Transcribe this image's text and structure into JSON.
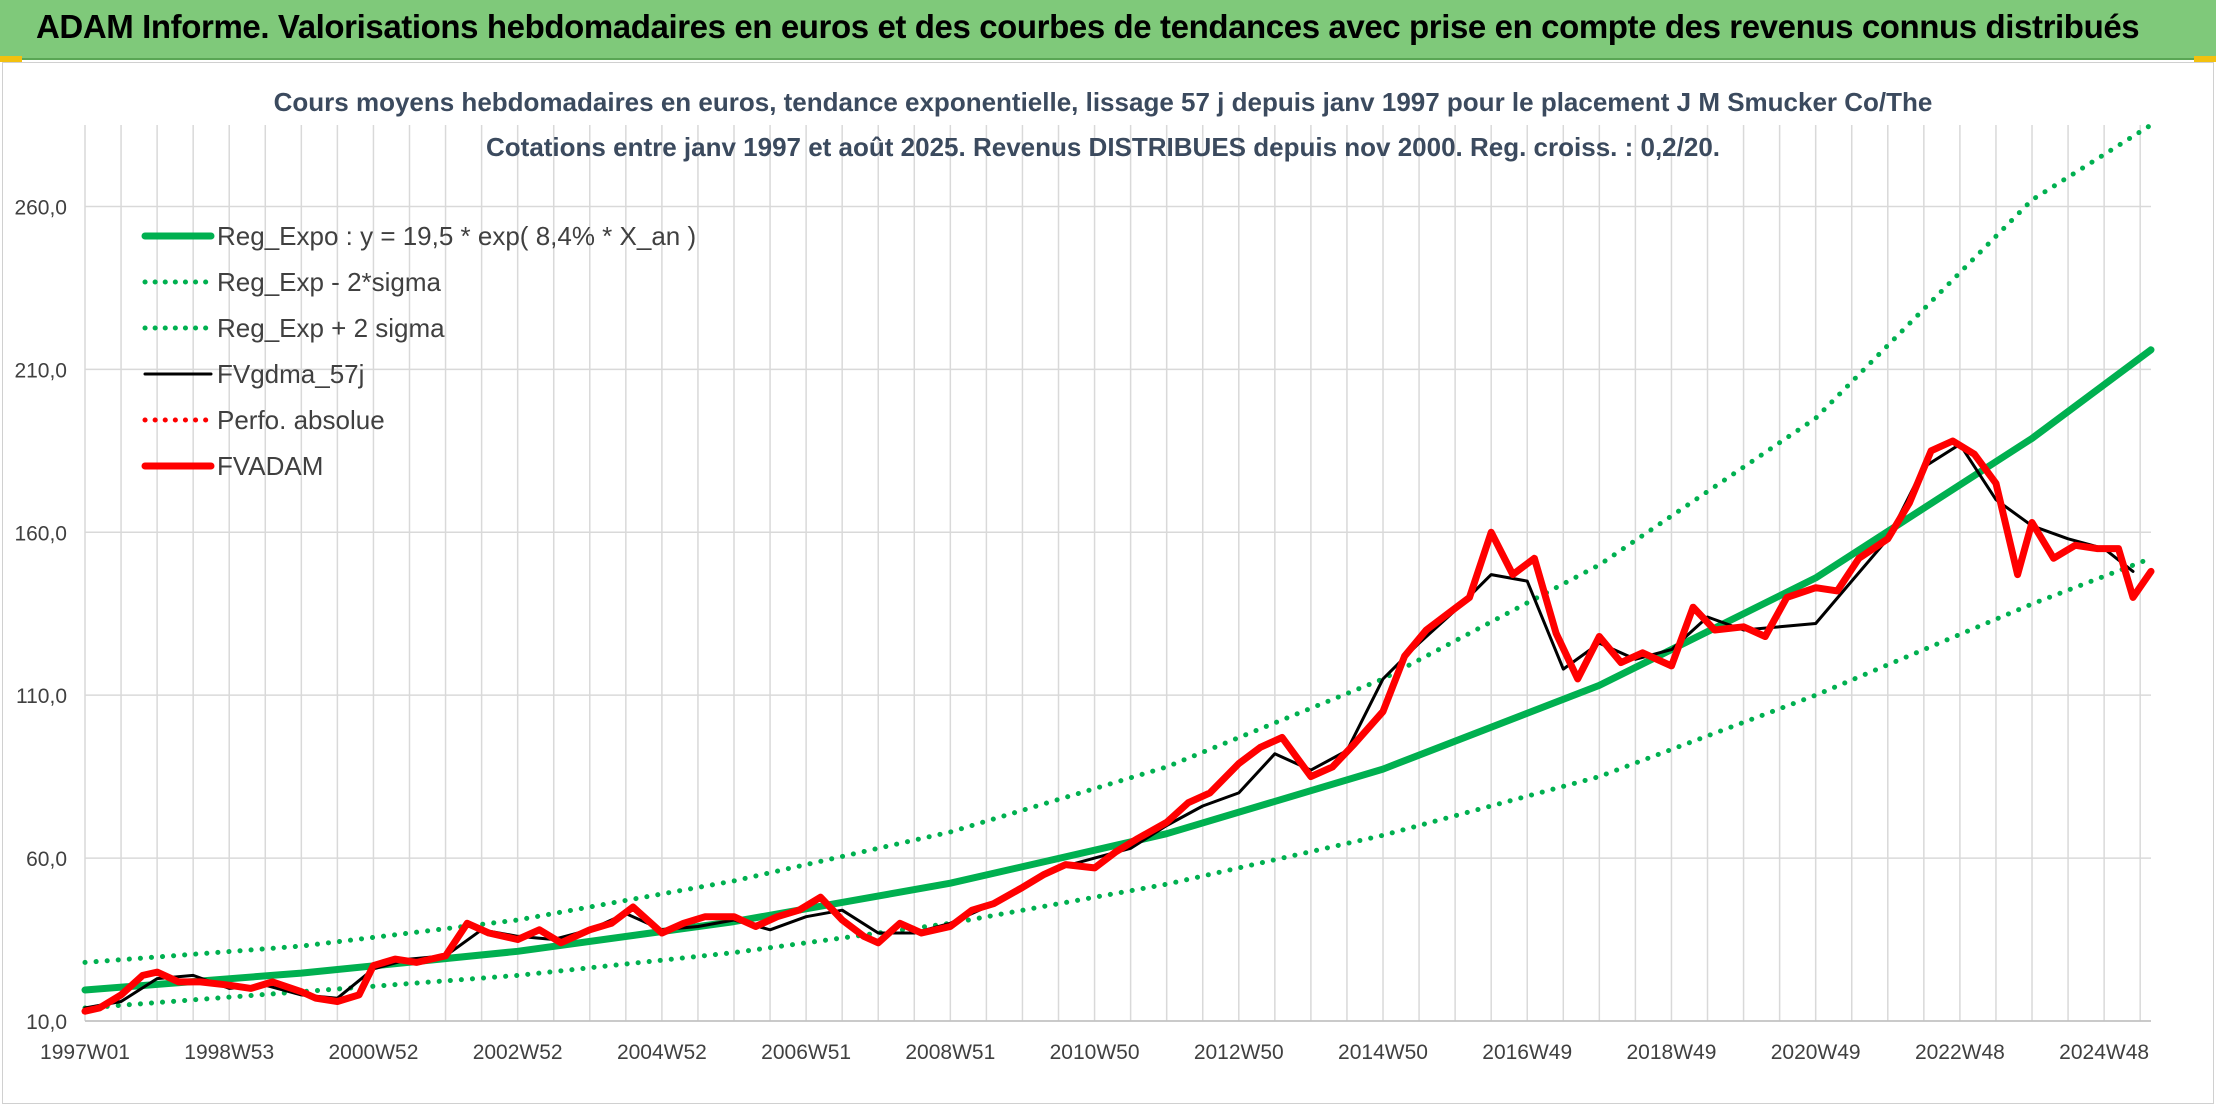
{
  "header": {
    "title": "ADAM Informe. Valorisations hebdomadaires en euros et des courbes de tendances avec prise en compte des revenus connus distribués"
  },
  "chart_data": {
    "type": "line",
    "title_line1": "Cours moyens hebdomadaires en euros, tendance exponentielle, lissage 57 j depuis janv 1997 pour le placement J M Smucker Co/The",
    "title_line2": "Cotations entre janv 1997 et août 2025. Revenus DISTRIBUES depuis nov 2000. Reg. croiss. : 0,2/20.",
    "xlabel": "",
    "ylabel": "",
    "ylim": [
      10,
      285
    ],
    "xlim": [
      1997.0,
      2025.65
    ],
    "grid": true,
    "y_ticks": [
      "10,0",
      "60,0",
      "110,0",
      "160,0",
      "210,0",
      "260,0"
    ],
    "y_tick_values": [
      10,
      60,
      110,
      160,
      210,
      260
    ],
    "x_ticks": [
      "1997W01",
      "1998W53",
      "2000W52",
      "2002W52",
      "2004W52",
      "2006W51",
      "2008W51",
      "2010W50",
      "2012W50",
      "2014W50",
      "2016W49",
      "2018W49",
      "2020W49",
      "2022W48",
      "2024W48"
    ],
    "x_tick_values": [
      1997.0,
      1999.0,
      2001.0,
      2003.0,
      2005.0,
      2007.0,
      2009.0,
      2011.0,
      2013.0,
      2015.0,
      2017.0,
      2019.0,
      2021.0,
      2023.0,
      2025.0
    ],
    "legend_position": "top-left",
    "colors": {
      "green": "#00b050",
      "black": "#000000",
      "red": "#ff0000",
      "grid": "#d9d9d9"
    },
    "series": [
      {
        "name": "Reg_Expo : y = 19,5 * exp( 8,4% *  X_an )",
        "style": "solid-thick",
        "color": "#00b050",
        "x": [
          1997.0,
          2000.0,
          2003.0,
          2006.0,
          2009.0,
          2012.0,
          2015.0,
          2018.0,
          2021.0,
          2024.0,
          2025.65
        ],
        "y": [
          19.5,
          24.7,
          31.4,
          40.5,
          52.3,
          67.5,
          87.3,
          113.0,
          146.0,
          188.8,
          216.0
        ]
      },
      {
        "name": "Reg_Exp - 2*sigma",
        "style": "dotted",
        "color": "#00b050",
        "x": [
          1997.0,
          2000.0,
          2003.0,
          2006.0,
          2009.0,
          2012.0,
          2015.0,
          2018.0,
          2021.0,
          2024.0,
          2025.65
        ],
        "y": [
          14.0,
          19.0,
          24.0,
          31.0,
          40.0,
          52.0,
          67.0,
          85.0,
          110.0,
          138.0,
          152.0
        ]
      },
      {
        "name": "Reg_Exp + 2 sigma",
        "style": "dotted",
        "color": "#00b050",
        "x": [
          1997.0,
          2000.0,
          2003.0,
          2006.0,
          2009.0,
          2012.0,
          2015.0,
          2018.0,
          2021.0,
          2024.0,
          2025.65
        ],
        "y": [
          28.0,
          33.0,
          41.0,
          53.0,
          68.0,
          88.0,
          115.0,
          150.0,
          195.0,
          262.0,
          296.0
        ]
      },
      {
        "name": "FVgdma_57j",
        "style": "solid",
        "color": "#000000",
        "x": [
          1997.0,
          1997.5,
          1998.0,
          1998.5,
          1999.0,
          1999.5,
          2000.0,
          2000.5,
          2001.0,
          2001.5,
          2002.0,
          2002.5,
          2003.0,
          2003.5,
          2004.0,
          2004.5,
          2005.0,
          2005.5,
          2006.0,
          2006.5,
          2007.0,
          2007.5,
          2008.0,
          2008.5,
          2009.0,
          2009.5,
          2010.0,
          2010.5,
          2011.0,
          2011.5,
          2012.0,
          2012.5,
          2013.0,
          2013.5,
          2014.0,
          2014.5,
          2015.0,
          2015.5,
          2016.0,
          2016.5,
          2017.0,
          2017.5,
          2018.0,
          2018.5,
          2019.0,
          2019.5,
          2020.0,
          2020.5,
          2021.0,
          2021.5,
          2022.0,
          2022.5,
          2023.0,
          2023.5,
          2024.0,
          2024.5,
          2025.0,
          2025.4
        ],
        "y": [
          14,
          16,
          23,
          24,
          20,
          21,
          18,
          17,
          26,
          29,
          30,
          38,
          36,
          35,
          38,
          43,
          38,
          39,
          41,
          38,
          42,
          44,
          37,
          37,
          40,
          45,
          51,
          57,
          60,
          63,
          70,
          76,
          80,
          92,
          87,
          93,
          115,
          126,
          136,
          147,
          145,
          118,
          126,
          121,
          124,
          134,
          130,
          131,
          132,
          145,
          158,
          180,
          187,
          170,
          162,
          158,
          155,
          148
        ]
      },
      {
        "name": "Perfo. absolue",
        "style": "dotted",
        "color": "#ff0000",
        "x": [],
        "y": []
      },
      {
        "name": "FVADAM",
        "style": "solid-thick",
        "color": "#ff0000",
        "x": [
          1997.0,
          1997.2,
          1997.5,
          1997.8,
          1998.0,
          1998.3,
          1998.6,
          1999.0,
          1999.3,
          1999.6,
          2000.0,
          2000.2,
          2000.5,
          2000.8,
          2001.0,
          2001.3,
          2001.6,
          2002.0,
          2002.3,
          2002.6,
          2003.0,
          2003.3,
          2003.6,
          2004.0,
          2004.3,
          2004.6,
          2005.0,
          2005.3,
          2005.6,
          2006.0,
          2006.3,
          2006.6,
          2006.9,
          2007.2,
          2007.5,
          2007.8,
          2008.0,
          2008.3,
          2008.6,
          2009.0,
          2009.3,
          2009.6,
          2010.0,
          2010.3,
          2010.6,
          2011.0,
          2011.3,
          2011.6,
          2012.0,
          2012.3,
          2012.6,
          2013.0,
          2013.3,
          2013.6,
          2014.0,
          2014.3,
          2014.6,
          2015.0,
          2015.3,
          2015.6,
          2015.9,
          2016.2,
          2016.5,
          2016.8,
          2017.1,
          2017.4,
          2017.7,
          2018.0,
          2018.3,
          2018.6,
          2019.0,
          2019.3,
          2019.6,
          2020.0,
          2020.3,
          2020.6,
          2021.0,
          2021.3,
          2021.6,
          2022.0,
          2022.3,
          2022.6,
          2022.9,
          2023.2,
          2023.5,
          2023.8,
          2024.0,
          2024.3,
          2024.6,
          2024.9,
          2025.2,
          2025.4,
          2025.65
        ],
        "y": [
          13,
          14,
          18,
          24,
          25,
          22,
          22,
          21,
          20,
          22,
          19,
          17,
          16,
          18,
          27,
          29,
          28,
          30,
          40,
          37,
          35,
          38,
          34,
          38,
          40,
          45,
          37,
          40,
          42,
          42,
          39,
          42,
          44,
          48,
          41,
          36,
          34,
          40,
          37,
          39,
          44,
          46,
          51,
          55,
          58,
          57,
          62,
          66,
          71,
          77,
          80,
          89,
          94,
          97,
          85,
          88,
          95,
          105,
          122,
          130,
          135,
          140,
          160,
          147,
          152,
          129,
          115,
          128,
          120,
          123,
          119,
          137,
          130,
          131,
          128,
          140,
          143,
          142,
          152,
          158,
          169,
          185,
          188,
          184,
          175,
          147,
          163,
          152,
          156,
          155,
          155,
          140,
          148
        ]
      }
    ]
  }
}
